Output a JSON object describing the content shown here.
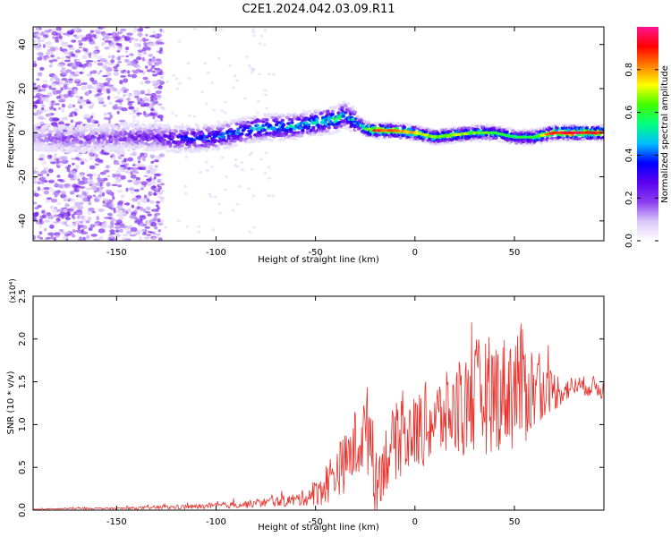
{
  "title": "C2E1.2024.042.03.09.R11",
  "colors": {
    "snr_line": "#e8312b",
    "axis": "#000000",
    "colorbar": [
      "#ffffff",
      "#d9c8f8",
      "#8b3df0",
      "#5a00f0",
      "#0000ff",
      "#00bfff",
      "#00ff80",
      "#40ff00",
      "#ffff00",
      "#ff8000",
      "#ff0000",
      "#ff1493"
    ]
  },
  "chart_data": [
    {
      "type": "heatmap",
      "xlabel": "Height of straight line (km)",
      "ylabel": "Frequency (Hz)",
      "xlim": [
        -192,
        95
      ],
      "ylim": [
        -49,
        48
      ],
      "xticks": [
        -150,
        -100,
        -50,
        0,
        50
      ],
      "yticks": [
        -40,
        -20,
        0,
        20,
        40
      ],
      "colorbar": {
        "label": "Normalized spectral amplitude",
        "range": [
          0,
          1
        ],
        "ticks": [
          "0.0",
          "0.2",
          "0.4",
          "0.6",
          "0.8"
        ]
      },
      "ridge": {
        "x": [
          -192,
          -170,
          -150,
          -130,
          -120,
          -100,
          -80,
          -60,
          -40,
          -35,
          -30,
          -25,
          -20,
          -10,
          0,
          10,
          20,
          30,
          40,
          50,
          60,
          70,
          80,
          95
        ],
        "freq": [
          -2,
          -3,
          -2,
          -2,
          -3,
          -2,
          2,
          3,
          6,
          8,
          5,
          2,
          1,
          1,
          0,
          -2,
          -1,
          0,
          0,
          -2,
          -2,
          0,
          0,
          0
        ],
        "amplitude": [
          0.15,
          0.2,
          0.22,
          0.25,
          0.35,
          0.42,
          0.48,
          0.5,
          0.55,
          0.5,
          0.5,
          0.6,
          0.85,
          0.75,
          0.7,
          0.6,
          0.65,
          0.6,
          0.55,
          0.5,
          0.55,
          0.85,
          0.9,
          0.8
        ]
      }
    },
    {
      "type": "line",
      "xlabel": "Height of straight line (km)",
      "ylabel": "SNR (10 * v/v)",
      "scale_label": "(x10⁴)",
      "xlim": [
        -192,
        95
      ],
      "ylim": [
        0,
        2.5
      ],
      "xticks": [
        -150,
        -100,
        -50,
        0,
        50
      ],
      "yticks": [
        "0.0",
        "0.5",
        "1.0",
        "1.5",
        "2.0",
        "2.5"
      ],
      "series": [
        {
          "x": [
            -192,
            -170,
            -150,
            -130,
            -110,
            -100,
            -90,
            -80,
            -70,
            -60,
            -55,
            -50,
            -45,
            -40,
            -35,
            -30,
            -25,
            -22,
            -20,
            -15,
            -10,
            -5,
            0,
            5,
            10,
            15,
            20,
            25,
            30,
            35,
            40,
            45,
            50,
            55,
            60,
            65,
            70,
            75,
            80,
            85,
            90,
            95
          ],
          "values": [
            0.01,
            0.02,
            0.02,
            0.03,
            0.04,
            0.05,
            0.06,
            0.08,
            0.1,
            0.12,
            0.15,
            0.2,
            0.3,
            0.45,
            0.55,
            0.75,
            0.9,
            1.0,
            0.3,
            0.6,
            0.8,
            0.85,
            0.9,
            1.0,
            1.05,
            1.1,
            1.15,
            1.2,
            1.3,
            1.35,
            1.35,
            1.4,
            1.45,
            1.45,
            1.4,
            1.4,
            1.4,
            1.4,
            1.45,
            1.45,
            1.45,
            1.4
          ],
          "jitter": [
            0.005,
            0.01,
            0.01,
            0.02,
            0.03,
            0.03,
            0.04,
            0.05,
            0.06,
            0.08,
            0.1,
            0.15,
            0.25,
            0.3,
            0.35,
            0.45,
            0.45,
            0.7,
            0.35,
            0.4,
            0.45,
            0.45,
            0.45,
            0.5,
            0.5,
            0.5,
            0.55,
            0.6,
            0.7,
            0.7,
            0.7,
            0.65,
            0.8,
            0.7,
            0.5,
            0.3,
            0.25,
            0.15,
            0.12,
            0.12,
            0.12,
            0.12
          ]
        }
      ]
    }
  ]
}
